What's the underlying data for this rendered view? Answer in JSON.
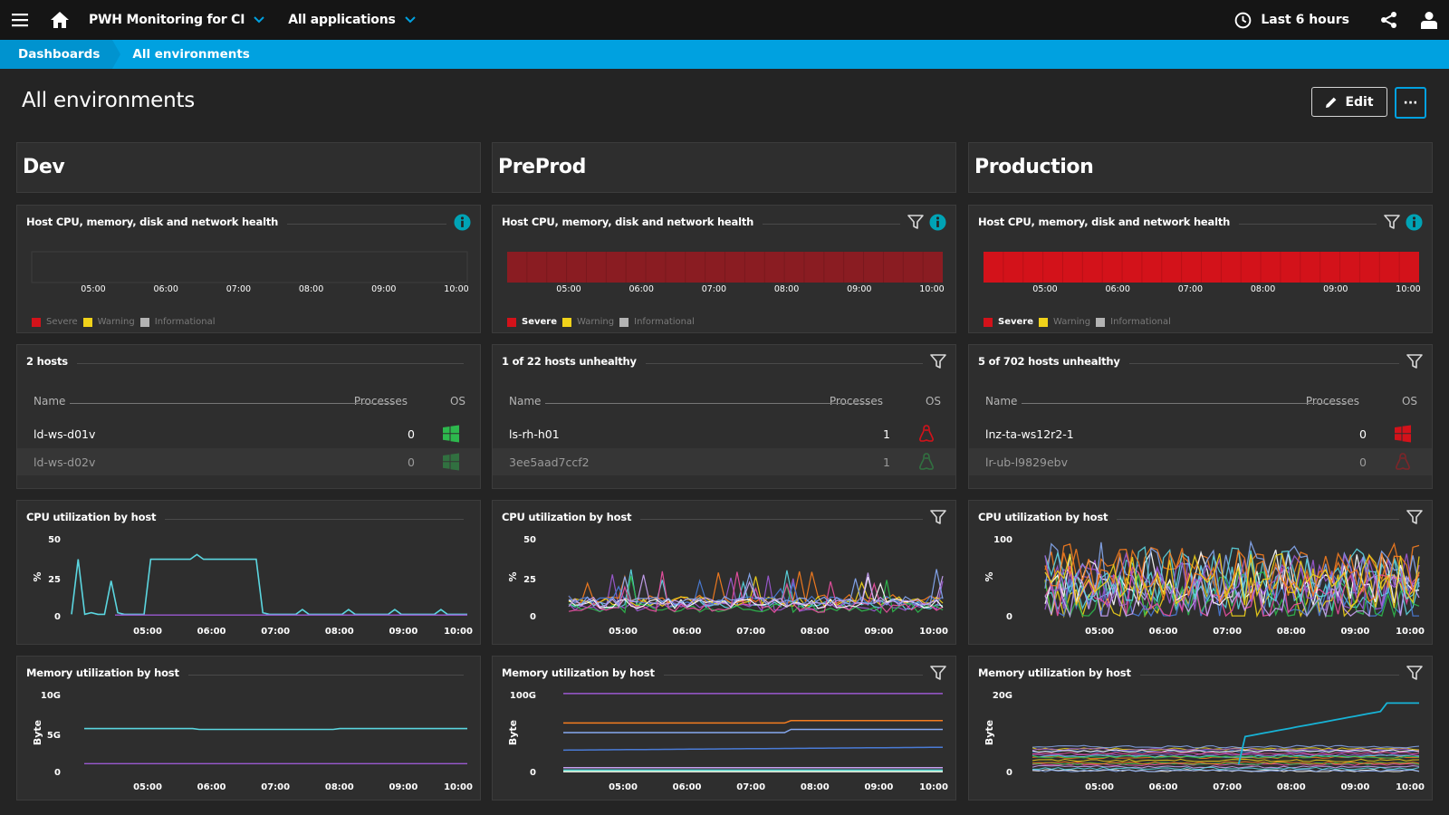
{
  "topbar": {
    "app_title": "PWH Monitoring for CI",
    "app_filter": "All applications",
    "timeframe": "Last 6 hours",
    "icons": [
      "menu-icon",
      "home-icon",
      "chevron-down-icon",
      "clock-icon",
      "share-icon",
      "user-icon"
    ]
  },
  "breadcrumb": {
    "root": "Dashboards",
    "current": "All environments"
  },
  "page": {
    "title": "All environments",
    "edit_label": "Edit",
    "more_label": "···"
  },
  "colors": {
    "severe": "#d3121a",
    "severe_dim": "#8a1c22",
    "warning": "#f0d21a",
    "informational": "#b3b3b3",
    "accent": "#00a1e0",
    "windows": "#2db84d",
    "linux_red": "#d3121a",
    "linux_green": "#2db84d"
  },
  "columns": [
    {
      "name": "Dev",
      "health": {
        "title": "Host CPU, memory, disk and network health",
        "x_ticks": [
          "05:00",
          "06:00",
          "07:00",
          "08:00",
          "09:00",
          "10:00"
        ],
        "status": "none",
        "legend": {
          "severe": "Severe",
          "warning": "Warning",
          "informational": "Informational"
        }
      },
      "hosts": {
        "title": "2 hosts",
        "columns": {
          "name": "Name",
          "processes": "Processes",
          "os": "OS"
        },
        "rows": [
          {
            "name": "ld-ws-d01v",
            "processes": "0",
            "os": "windows"
          },
          {
            "name": "ld-ws-d02v",
            "processes": "0",
            "os": "windows"
          }
        ]
      },
      "cpu": {
        "title": "CPU utilization by host",
        "ylabel": "%",
        "y_ticks": [
          "50",
          "25",
          "0"
        ],
        "x_ticks": [
          "05:00",
          "06:00",
          "07:00",
          "08:00",
          "09:00",
          "10:00"
        ]
      },
      "memory": {
        "title": "Memory utilization by host",
        "ylabel": "Byte",
        "y_ticks": [
          "10G",
          "5G",
          "0"
        ],
        "x_ticks": [
          "05:00",
          "06:00",
          "07:00",
          "08:00",
          "09:00",
          "10:00"
        ]
      }
    },
    {
      "name": "PreProd",
      "health": {
        "title": "Host CPU, memory, disk and network health",
        "x_ticks": [
          "05:00",
          "06:00",
          "07:00",
          "08:00",
          "09:00",
          "10:00"
        ],
        "status": "severe-dim",
        "legend": {
          "severe": "Severe",
          "warning": "Warning",
          "informational": "Informational"
        }
      },
      "hosts": {
        "title": "1 of 22 hosts unhealthy",
        "columns": {
          "name": "Name",
          "processes": "Processes",
          "os": "OS"
        },
        "rows": [
          {
            "name": "ls-rh-h01",
            "processes": "1",
            "os": "linux-red"
          },
          {
            "name": "3ee5aad7ccf2",
            "processes": "1",
            "os": "linux-green"
          }
        ]
      },
      "cpu": {
        "title": "CPU utilization by host",
        "ylabel": "%",
        "y_ticks": [
          "50",
          "25",
          "0"
        ],
        "x_ticks": [
          "05:00",
          "06:00",
          "07:00",
          "08:00",
          "09:00",
          "10:00"
        ]
      },
      "memory": {
        "title": "Memory utilization by host",
        "ylabel": "Byte",
        "y_ticks": [
          "100G",
          "0"
        ],
        "x_ticks": [
          "05:00",
          "06:00",
          "07:00",
          "08:00",
          "09:00",
          "10:00"
        ]
      }
    },
    {
      "name": "Production",
      "health": {
        "title": "Host CPU, memory, disk and network health",
        "x_ticks": [
          "05:00",
          "06:00",
          "07:00",
          "08:00",
          "09:00",
          "10:00"
        ],
        "status": "severe",
        "legend": {
          "severe": "Severe",
          "warning": "Warning",
          "informational": "Informational"
        }
      },
      "hosts": {
        "title": "5 of 702 hosts unhealthy",
        "columns": {
          "name": "Name",
          "processes": "Processes",
          "os": "OS"
        },
        "rows": [
          {
            "name": "lnz-ta-ws12r2-1",
            "processes": "0",
            "os": "windows-red"
          },
          {
            "name": "lr-ub-l9829ebv",
            "processes": "0",
            "os": "linux-red"
          }
        ]
      },
      "cpu": {
        "title": "CPU utilization by host",
        "ylabel": "%",
        "y_ticks": [
          "100",
          "0"
        ],
        "x_ticks": [
          "05:00",
          "06:00",
          "07:00",
          "08:00",
          "09:00",
          "10:00"
        ]
      },
      "memory": {
        "title": "Memory utilization by host",
        "ylabel": "Byte",
        "y_ticks": [
          "20G",
          "0"
        ],
        "x_ticks": [
          "05:00",
          "06:00",
          "07:00",
          "08:00",
          "09:00",
          "10:00"
        ]
      }
    }
  ]
}
